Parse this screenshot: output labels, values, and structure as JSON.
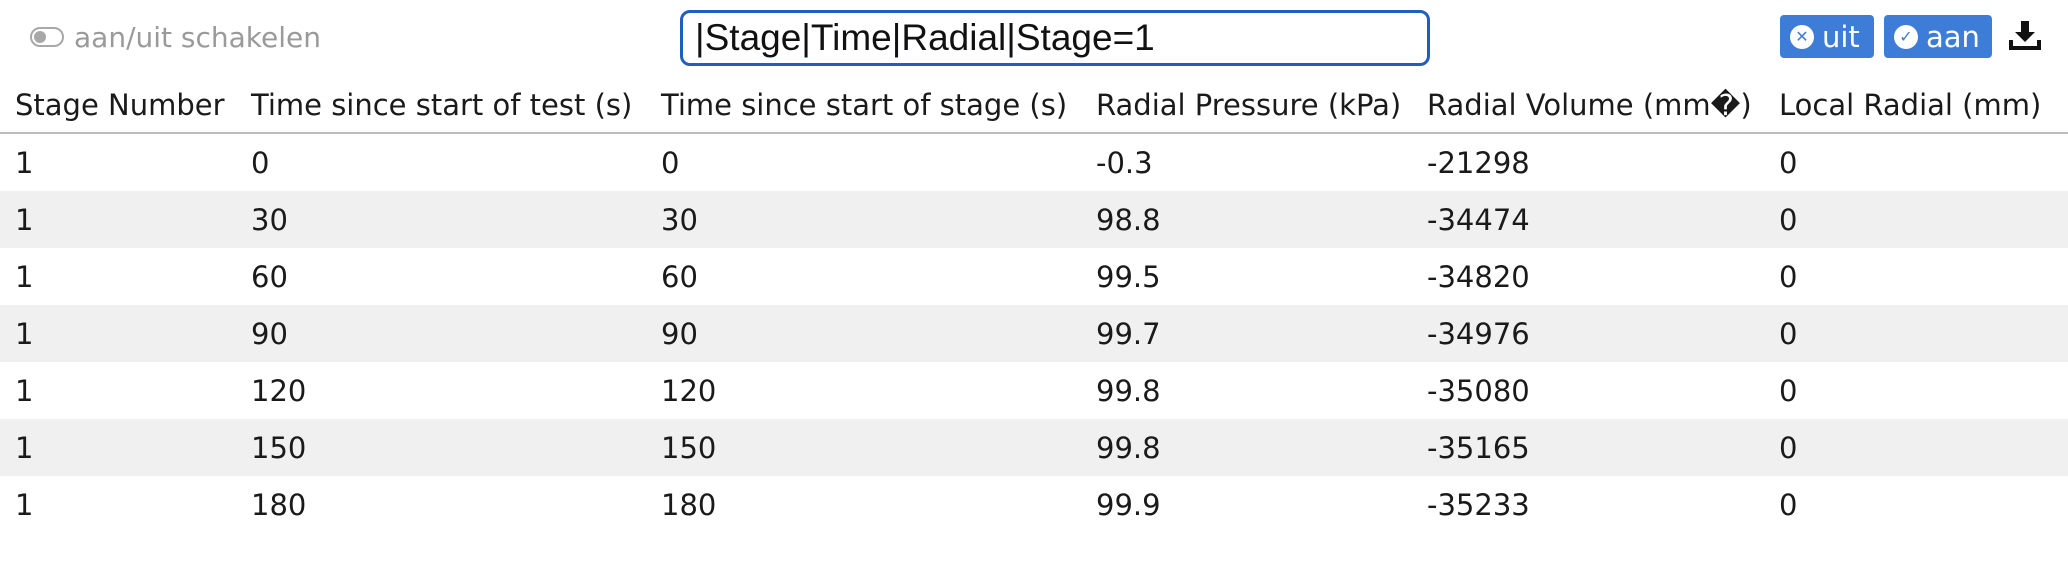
{
  "toolbar": {
    "toggle_label": "aan/uit schakelen",
    "filter_value": "|Stage|Time|Radial|Stage=1",
    "off_label": "uit",
    "on_label": "aan"
  },
  "table": {
    "columns": [
      "Stage Number",
      "Time since start of test (s)",
      "Time since start of stage (s)",
      "Radial Pressure (kPa)",
      "Radial Volume (mm�)",
      "Local Radial (mm)"
    ],
    "rows": [
      [
        "1",
        "0",
        "0",
        "-0.3",
        "-21298",
        "0"
      ],
      [
        "1",
        "30",
        "30",
        "98.8",
        "-34474",
        "0"
      ],
      [
        "1",
        "60",
        "60",
        "99.5",
        "-34820",
        "0"
      ],
      [
        "1",
        "90",
        "90",
        "99.7",
        "-34976",
        "0"
      ],
      [
        "1",
        "120",
        "120",
        "99.8",
        "-35080",
        "0"
      ],
      [
        "1",
        "150",
        "150",
        "99.8",
        "-35165",
        "0"
      ],
      [
        "1",
        "180",
        "180",
        "99.9",
        "-35233",
        "0"
      ]
    ]
  },
  "colors": {
    "accent": "#3d7dd8",
    "focus_border": "#1f5fbf",
    "stripe": "#f0f0f0"
  }
}
